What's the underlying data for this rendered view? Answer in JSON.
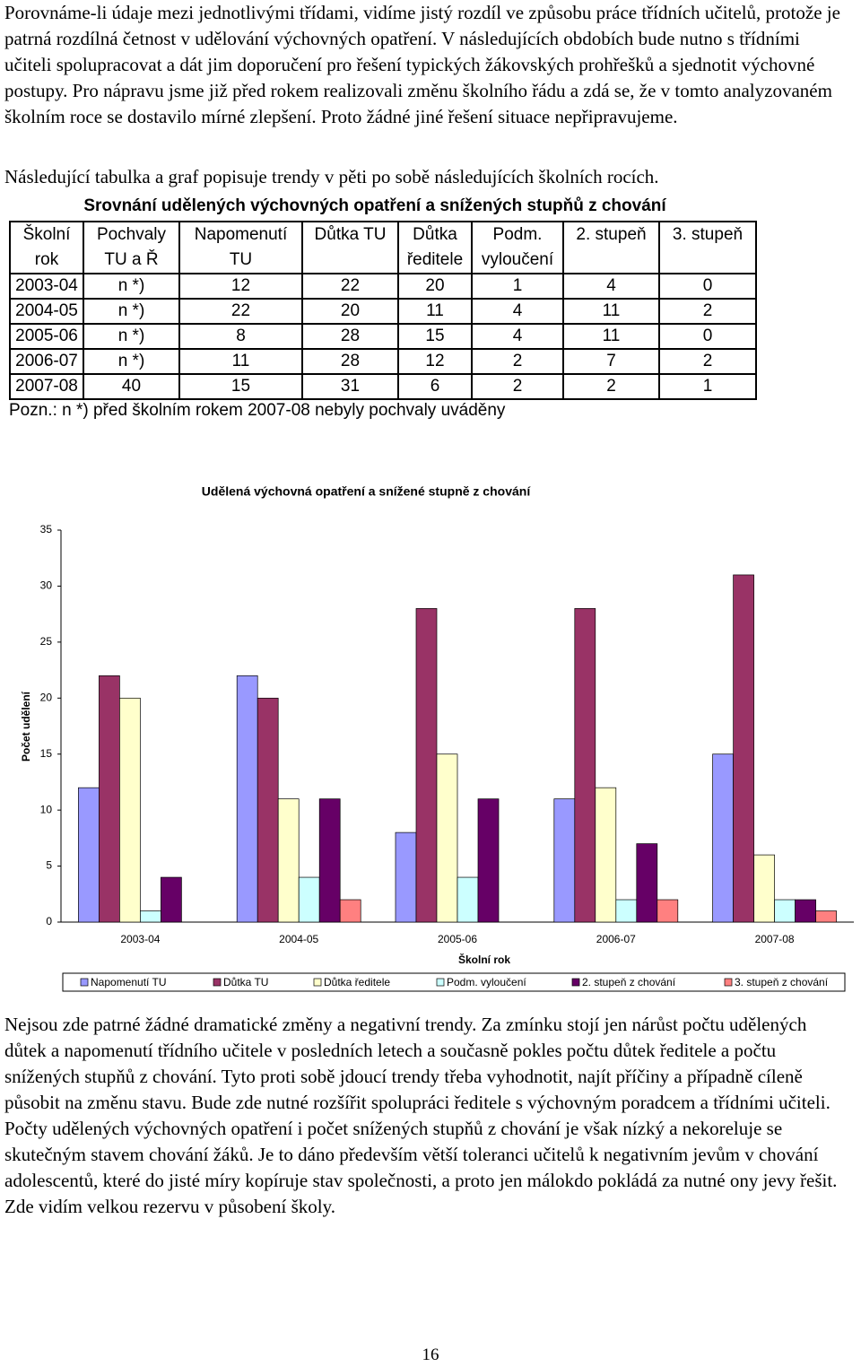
{
  "paragraphs": [
    "Porovnáme-li údaje mezi jednotlivými třídami, vidíme jistý rozdíl ve způsobu práce třídních učitelů, protože je patrná rozdílná četnost v udělování výchovných opatření. V následujících obdobích bude nutno s třídními učiteli spolupracovat a dát jim doporučení pro řešení typických žákovských prohřešků a sjednotit výchovné postupy. Pro nápravu jsme již před rokem realizovali změnu školního řádu a zdá se, že v tomto analyzovaném školním roce se dostavilo mírné zlepšení. Proto žádné jiné řešení situace nepřipravujeme.",
    "Následující tabulka a graf popisuje trendy v pěti po sobě následujících školních rocích."
  ],
  "table": {
    "title": "Srovnání udělených výchovných opatření a snížených stupňů z chování",
    "header": [
      [
        "Školní",
        "rok"
      ],
      [
        "Pochvaly",
        "TU a Ř"
      ],
      [
        "Napomenutí",
        "TU"
      ],
      [
        "Důtka TU"
      ],
      [
        "Důtka",
        "ředitele"
      ],
      [
        "Podm.",
        "vyloučení"
      ],
      [
        "2. stupeň"
      ],
      [
        "3. stupeň"
      ]
    ],
    "rows": [
      [
        "2003-04",
        "n *)",
        12,
        22,
        20,
        1,
        4,
        0
      ],
      [
        "2004-05",
        "n *)",
        22,
        20,
        11,
        4,
        11,
        2
      ],
      [
        "2005-06",
        "n *)",
        8,
        28,
        15,
        4,
        11,
        0
      ],
      [
        "2006-07",
        "n *)",
        11,
        28,
        12,
        2,
        7,
        2
      ],
      [
        "2007-08",
        40,
        15,
        31,
        6,
        2,
        2,
        1
      ]
    ],
    "note": "Pozn.: n *) před školním rokem 2007-08 nebyly pochvaly uváděny"
  },
  "chart_data": {
    "type": "bar",
    "title": "Udělená výchovná opatření a snížené stupně z chování",
    "x_label": "Školní rok",
    "y_label": "Počet udělení",
    "categories": [
      "2003-04",
      "2004-05",
      "2005-06",
      "2006-07",
      "2007-08"
    ],
    "series": [
      {
        "name": "Napomenutí TU",
        "color": "#9999ff",
        "values": [
          12,
          22,
          8,
          11,
          15
        ]
      },
      {
        "name": "Důtka TU",
        "color": "#993366",
        "values": [
          22,
          20,
          28,
          28,
          31
        ]
      },
      {
        "name": "Důtka ředitele",
        "color": "#ffffcc",
        "values": [
          20,
          11,
          15,
          12,
          6
        ]
      },
      {
        "name": "Podm. vyloučení",
        "color": "#ccffff",
        "values": [
          1,
          4,
          4,
          2,
          2
        ]
      },
      {
        "name": "2. stupeň z chování",
        "color": "#660066",
        "values": [
          4,
          11,
          11,
          7,
          2
        ]
      },
      {
        "name": "3. stupeň z chování",
        "color": "#ff8080",
        "values": [
          0,
          2,
          0,
          2,
          1
        ]
      }
    ],
    "ylim": [
      0,
      35
    ],
    "yticks": [
      0,
      5,
      10,
      15,
      20,
      25,
      30,
      35
    ],
    "grid": false,
    "legend": "bottom"
  },
  "closing": "Nejsou zde patrné žádné dramatické změny a negativní trendy. Za zmínku stojí jen nárůst počtu udělených důtek a napomenutí třídního učitele v posledních letech a současně pokles počtu důtek ředitele a počtu snížených stupňů z chování. Tyto proti sobě jdoucí trendy třeba vyhodnotit, najít příčiny a případně cíleně působit na změnu stavu. Bude zde nutné rozšířit spolupráci ředitele s výchovným poradcem a třídními učiteli. Počty udělených výchovných opatření i počet snížených stupňů z chování je však nízký a nekoreluje se skutečným stavem chování žáků. Je to dáno především větší toleranci učitelů k negativním jevům v chování adolescentů, které do jisté míry kopíruje stav společnosti, a proto jen málokdo pokládá za nutné ony jevy řešit. Zde vidím velkou rezervu v působení školy.",
  "page_number": "16"
}
